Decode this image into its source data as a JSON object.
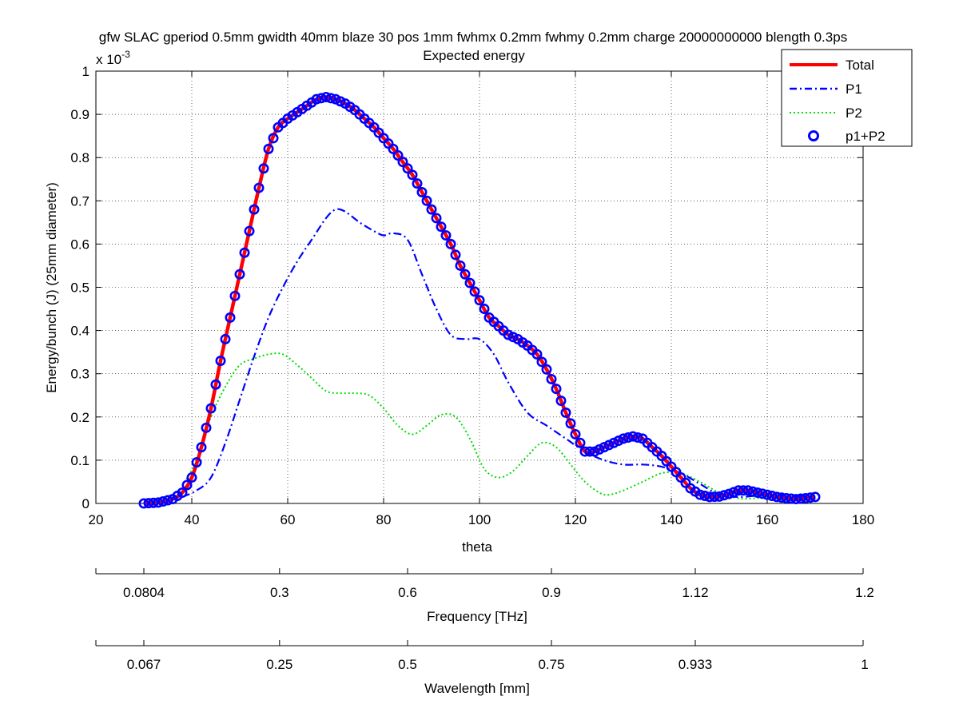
{
  "title_line1": "gfw SLAC gperiod 0.5mm gwidth 40mm blaze 30 pos 1mm fwhmx 0.2mm fwhmy 0.2mm charge 20000000000 blength 0.3ps",
  "title_line2": "Expected energy",
  "exponent_label": "x 10",
  "exponent_power": "-3",
  "colors": {
    "total": "#ff0000",
    "p1": "#0000ff",
    "p2": "#00dd00",
    "p1p2": "#0000ff",
    "grid": "#000000"
  },
  "chart_data": {
    "type": "line",
    "xlabel": "theta",
    "ylabel": "Energy/bunch (J) (25mm diameter)",
    "xlim": [
      20,
      180
    ],
    "ylim": [
      0,
      1
    ],
    "y_scale_note": "x 10^-3",
    "grid": true,
    "legend_position": "top-right",
    "xticks": [
      20,
      40,
      60,
      80,
      100,
      120,
      140,
      160,
      180
    ],
    "yticks": [
      0,
      0.1,
      0.2,
      0.3,
      0.4,
      0.5,
      0.6,
      0.7,
      0.8,
      0.9,
      1
    ],
    "ytick_labels": [
      "0",
      "0.1",
      "0.2",
      "0.3",
      "0.4",
      "0.5",
      "0.6",
      "0.7",
      "0.8",
      "0.9",
      "1"
    ],
    "series": [
      {
        "name": "Total",
        "style": "solid",
        "x": [
          30,
          33,
          36,
          38,
          40,
          42,
          44,
          46,
          48,
          50,
          52,
          54,
          56,
          58,
          60,
          62,
          64,
          66,
          68,
          70,
          72,
          74,
          76,
          78,
          80,
          82,
          84,
          86,
          88,
          90,
          92,
          94,
          96,
          98,
          100,
          102,
          104,
          106,
          108,
          110,
          112,
          114,
          116,
          118,
          120,
          122,
          124,
          126,
          128,
          130,
          132,
          134,
          136,
          138,
          140,
          142,
          144,
          146,
          148,
          150,
          152,
          154,
          156,
          158,
          160,
          162,
          164,
          166,
          168,
          170
        ],
        "y": [
          0.0,
          0.002,
          0.01,
          0.025,
          0.06,
          0.13,
          0.22,
          0.33,
          0.43,
          0.53,
          0.63,
          0.73,
          0.82,
          0.87,
          0.89,
          0.905,
          0.92,
          0.935,
          0.94,
          0.935,
          0.925,
          0.91,
          0.89,
          0.87,
          0.845,
          0.82,
          0.79,
          0.76,
          0.72,
          0.68,
          0.64,
          0.6,
          0.55,
          0.51,
          0.47,
          0.43,
          0.41,
          0.39,
          0.38,
          0.365,
          0.345,
          0.31,
          0.265,
          0.21,
          0.16,
          0.12,
          0.12,
          0.13,
          0.14,
          0.15,
          0.155,
          0.15,
          0.13,
          0.11,
          0.085,
          0.06,
          0.035,
          0.02,
          0.015,
          0.016,
          0.022,
          0.03,
          0.03,
          0.025,
          0.02,
          0.015,
          0.012,
          0.01,
          0.012,
          0.015
        ]
      },
      {
        "name": "P1",
        "style": "dash-dot",
        "x": [
          38,
          41,
          44,
          47,
          50,
          53,
          56,
          59,
          62,
          65,
          68,
          70,
          72,
          75,
          78,
          80,
          82,
          85,
          88,
          91,
          94,
          97,
          100,
          103,
          106,
          110,
          114,
          118,
          122,
          126,
          130,
          134,
          138,
          142,
          146,
          150,
          154,
          158,
          162,
          166,
          170
        ],
        "y": [
          0.015,
          0.03,
          0.06,
          0.14,
          0.24,
          0.34,
          0.43,
          0.5,
          0.56,
          0.61,
          0.66,
          0.68,
          0.675,
          0.65,
          0.63,
          0.62,
          0.625,
          0.61,
          0.53,
          0.45,
          0.39,
          0.38,
          0.38,
          0.345,
          0.28,
          0.21,
          0.18,
          0.15,
          0.12,
          0.1,
          0.09,
          0.09,
          0.085,
          0.07,
          0.045,
          0.02,
          0.015,
          0.018,
          0.02,
          0.018,
          0.015
        ]
      },
      {
        "name": "P2",
        "style": "dotted",
        "x": [
          38,
          41,
          44,
          47,
          50,
          53,
          56,
          59,
          62,
          65,
          68,
          71,
          74,
          77,
          80,
          83,
          86,
          89,
          92,
          95,
          98,
          101,
          104,
          107,
          110,
          113,
          116,
          119,
          122,
          125,
          127,
          130,
          134,
          138,
          142,
          146,
          150,
          154,
          158,
          162,
          166,
          170
        ],
        "y": [
          0.04,
          0.1,
          0.2,
          0.27,
          0.32,
          0.335,
          0.345,
          0.345,
          0.32,
          0.29,
          0.26,
          0.255,
          0.255,
          0.25,
          0.22,
          0.18,
          0.16,
          0.18,
          0.205,
          0.2,
          0.15,
          0.08,
          0.06,
          0.075,
          0.11,
          0.14,
          0.13,
          0.09,
          0.05,
          0.025,
          0.02,
          0.03,
          0.05,
          0.07,
          0.07,
          0.05,
          0.025,
          0.012,
          0.012,
          0.015,
          0.016,
          0.015
        ]
      },
      {
        "name": "p1+P2",
        "style": "markers",
        "sampling_step": 1
      }
    ],
    "secondary_axes": [
      {
        "label": "Frequency [THz]",
        "tick_labels": [
          "0.0804",
          "0.3",
          "0.6",
          "0.9",
          "1.12",
          "1.2"
        ],
        "tick_theta": [
          30,
          58.3,
          85,
          115,
          145,
          180
        ]
      },
      {
        "label": "Wavelength [mm]",
        "tick_labels": [
          "0.067",
          "0.25",
          "0.5",
          "0.75",
          "0.933",
          "1"
        ],
        "tick_theta": [
          30,
          58.3,
          85,
          115,
          145,
          180
        ]
      }
    ]
  }
}
